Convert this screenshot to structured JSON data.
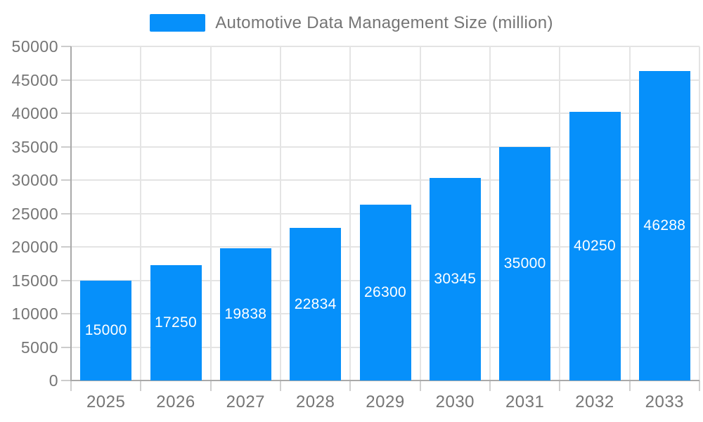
{
  "colors": {
    "background": "#FFFFFF",
    "bar": "#0690FA",
    "axis_text": "#757575",
    "legend_text": "#757575",
    "axis_line": "#A9A9A9",
    "grid_line": "#E4E4E4",
    "y_tick": "#CCCCCC",
    "x_tick": "#CFCFCF",
    "bar_label": "#FFFFFF"
  },
  "legend": {
    "label": "Automotive Data Management Size (million)"
  },
  "chart_data": {
    "type": "bar",
    "title": "",
    "categories": [
      "2025",
      "2026",
      "2027",
      "2028",
      "2029",
      "2030",
      "2031",
      "2032",
      "2033"
    ],
    "series": [
      {
        "name": "Automotive Data Management Size (million)",
        "values": [
          15000,
          17250,
          19838,
          22834,
          26300,
          30345,
          35000,
          40250,
          46288
        ]
      }
    ],
    "data_labels": [
      15000,
      17250,
      19838,
      22834,
      26300,
      30345,
      35000,
      40250,
      46288
    ],
    "xlabel": "",
    "ylabel": "",
    "ylim": [
      0,
      50000
    ],
    "ytick_interval": 5000,
    "ytick_labels": [
      "0",
      "5000",
      "10000",
      "15000",
      "20000",
      "25000",
      "30000",
      "35000",
      "40000",
      "45000",
      "50000"
    ],
    "grid": true,
    "grid_vertical": true,
    "legend_position": "top-center",
    "data_label_position": "inside-center"
  }
}
